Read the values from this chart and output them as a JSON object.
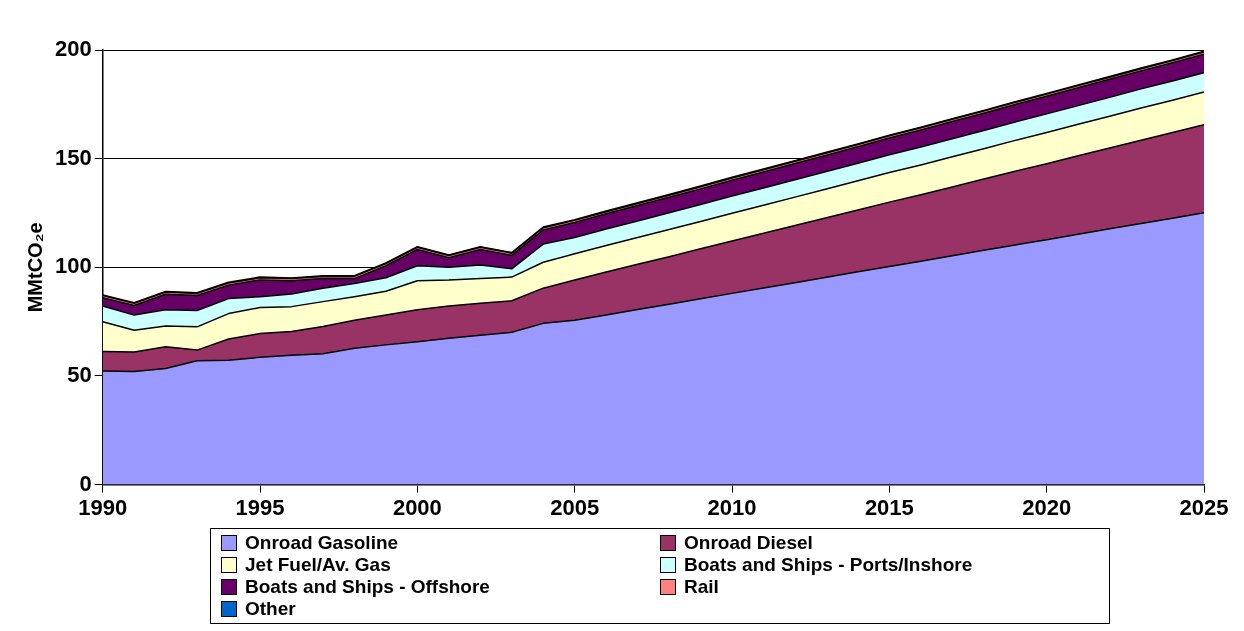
{
  "chart_data": {
    "type": "area",
    "stacked": true,
    "ylabel": "MMtCO₂e",
    "x": [
      1990,
      1991,
      1992,
      1993,
      1994,
      1995,
      1996,
      1997,
      1998,
      1999,
      2000,
      2001,
      2002,
      2003,
      2004,
      2005,
      2006,
      2007,
      2008,
      2009,
      2010,
      2011,
      2012,
      2013,
      2014,
      2015,
      2016,
      2017,
      2018,
      2019,
      2020,
      2021,
      2022,
      2023,
      2024,
      2025
    ],
    "xlim": [
      1990,
      2025
    ],
    "xticks": [
      1990,
      1995,
      2000,
      2005,
      2010,
      2015,
      2020,
      2025
    ],
    "ylim": [
      0,
      200
    ],
    "yticks": [
      0,
      50,
      100,
      150,
      200
    ],
    "grid": "y",
    "legend": "bottom",
    "series": [
      {
        "name": "Onroad Gasoline",
        "color": "#9999ff",
        "values": [
          52.3,
          52.0,
          53.4,
          57.0,
          57.2,
          58.6,
          59.5,
          60.2,
          62.7,
          64.3,
          65.7,
          67.4,
          68.7,
          70.1,
          74.2,
          75.6,
          78.1,
          80.6,
          83.0,
          85.5,
          88.0,
          90.5,
          92.9,
          95.4,
          97.9,
          100.4,
          102.8,
          105.3,
          107.8,
          110.3,
          112.7,
          115.2,
          117.7,
          120.2,
          122.6,
          125.1
        ]
      },
      {
        "name": "Onroad Diesel",
        "color": "#993366",
        "values": [
          9.0,
          9.0,
          10.0,
          4.9,
          9.8,
          10.9,
          11.0,
          12.6,
          12.9,
          13.8,
          14.8,
          14.8,
          14.8,
          14.5,
          16.2,
          18.6,
          19.7,
          20.8,
          21.9,
          23.0,
          24.1,
          25.2,
          26.3,
          27.4,
          28.5,
          29.6,
          30.6,
          31.7,
          32.8,
          33.9,
          35.0,
          36.1,
          37.2,
          38.3,
          39.4,
          40.5
        ]
      },
      {
        "name": "Jet Fuel/Av. Gas",
        "color": "#ffffcc",
        "values": [
          13.6,
          10.0,
          9.6,
          10.7,
          11.7,
          12.0,
          11.4,
          11.4,
          10.9,
          10.9,
          13.3,
          11.9,
          11.3,
          10.9,
          11.9,
          12.0,
          12.2,
          12.3,
          12.5,
          12.6,
          12.8,
          12.9,
          13.1,
          13.2,
          13.4,
          13.6,
          13.7,
          13.9,
          14.0,
          14.2,
          14.3,
          14.5,
          14.6,
          14.8,
          14.9,
          15.1
        ]
      },
      {
        "name": "Boats and Ships - Ports/Inshore",
        "color": "#ccffff",
        "values": [
          7.3,
          7.0,
          7.5,
          7.5,
          6.9,
          5.0,
          5.8,
          6.2,
          6.0,
          6.2,
          6.9,
          5.9,
          6.3,
          3.8,
          8.4,
          7.5,
          7.6,
          7.6,
          7.7,
          7.8,
          7.9,
          7.9,
          8.0,
          8.1,
          8.1,
          8.2,
          8.3,
          8.3,
          8.4,
          8.5,
          8.6,
          8.6,
          8.7,
          8.8,
          8.8,
          8.9
        ]
      },
      {
        "name": "Boats and Ships - Offshore",
        "color": "#660066",
        "values": [
          3.8,
          4.4,
          7.1,
          6.9,
          6.2,
          7.7,
          6.1,
          4.4,
          2.3,
          5.5,
          7.5,
          4.4,
          7.1,
          6.2,
          6.5,
          6.9,
          7.0,
          7.1,
          7.1,
          7.2,
          7.3,
          7.4,
          7.5,
          7.5,
          7.6,
          7.7,
          7.8,
          7.9,
          7.9,
          8.0,
          8.1,
          8.2,
          8.3,
          8.3,
          8.4,
          8.5
        ]
      },
      {
        "name": "Rail",
        "color": "#ff8080",
        "values": [
          1.0,
          1.0,
          1.0,
          1.0,
          1.0,
          1.0,
          1.0,
          1.0,
          1.0,
          1.0,
          1.0,
          1.0,
          1.0,
          1.0,
          1.0,
          1.0,
          1.0,
          1.0,
          1.0,
          1.0,
          1.0,
          1.0,
          1.0,
          1.0,
          1.0,
          1.0,
          1.0,
          1.0,
          1.0,
          1.0,
          1.0,
          1.0,
          1.0,
          1.0,
          1.0,
          1.0
        ]
      },
      {
        "name": "Other",
        "color": "#0066cc",
        "values": [
          0.3,
          0.3,
          0.3,
          0.3,
          0.3,
          0.3,
          0.3,
          0.3,
          0.3,
          0.3,
          0.3,
          0.3,
          0.3,
          0.3,
          0.3,
          0.3,
          0.3,
          0.3,
          0.3,
          0.3,
          0.3,
          0.3,
          0.3,
          0.3,
          0.3,
          0.3,
          0.3,
          0.3,
          0.3,
          0.3,
          0.3,
          0.3,
          0.3,
          0.3,
          0.3,
          0.3
        ]
      }
    ]
  }
}
